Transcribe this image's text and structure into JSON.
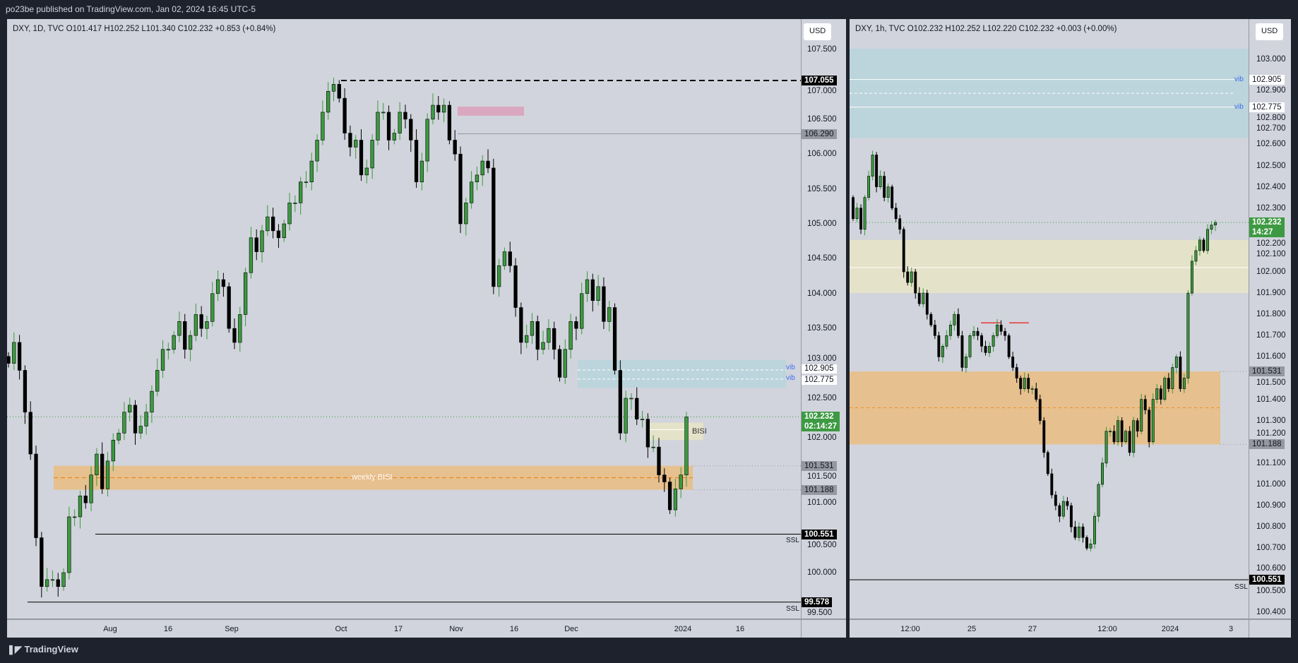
{
  "header": {
    "published": "po23be published on TradingView.com, Jan 02, 2024 16:45 UTC-5"
  },
  "footer": {
    "brand": "TradingView",
    "logo": "tradingview-logo"
  },
  "colors": {
    "up": "#3a9a3e",
    "down": "#000000",
    "vib": "#bcd4dc",
    "bisi": "#e4e2c8",
    "weekly_bisi": "#e6c08e",
    "pink": "#d9a7bf",
    "price_tag": "#3d9a42"
  },
  "left": {
    "legend": "DXY, 1D, TVC  O101.417  H102.252  L101.340  C102.232  +0.853 (+0.84%)",
    "currency": "USD",
    "ticks": [
      "107.500",
      "107.000",
      "106.500",
      "106.000",
      "105.500",
      "105.000",
      "104.500",
      "104.000",
      "103.500",
      "103.000",
      "102.500",
      "102.000",
      "101.500",
      "101.000",
      "100.500",
      "100.000",
      "99.500"
    ],
    "time_labels": [
      "Aug",
      "16",
      "Sep",
      "Oct",
      "17",
      "Nov",
      "16",
      "Dec",
      "2024",
      "16"
    ],
    "tags": {
      "high": "107.055",
      "level1": "106.290",
      "vib1": "102.905",
      "vib2": "102.775",
      "last": "102.232",
      "countdown": "02:14:27",
      "bisi_top": "101.531",
      "bisi_bottom": "101.188",
      "ssl1": "100.551",
      "ssl2": "99.578"
    },
    "annotations": {
      "vib": "vib",
      "bisi": "BISI",
      "weekly_bisi": "weekly BISI",
      "ssl": "SSL"
    },
    "closes": [
      103.0,
      103.3,
      102.9,
      102.3,
      101.7,
      100.5,
      99.8,
      99.9,
      99.9,
      99.8,
      100.0,
      100.8,
      100.8,
      101.1,
      101.0,
      101.4,
      101.7,
      101.2,
      101.6,
      101.9,
      102.0,
      102.3,
      102.4,
      102.0,
      102.1,
      102.3,
      102.6,
      102.9,
      103.2,
      103.2,
      103.4,
      103.6,
      103.2,
      103.4,
      103.7,
      103.5,
      103.6,
      104.0,
      104.2,
      104.1,
      103.5,
      103.3,
      103.7,
      104.3,
      104.8,
      104.6,
      104.9,
      105.1,
      104.9,
      104.8,
      105.0,
      105.3,
      105.3,
      105.6,
      105.6,
      105.9,
      106.2,
      106.6,
      106.9,
      107.0,
      106.8,
      106.3,
      106.1,
      106.2,
      105.7,
      105.8,
      106.2,
      106.6,
      106.6,
      106.2,
      106.3,
      106.6,
      106.5,
      106.2,
      105.6,
      105.9,
      106.5,
      106.7,
      106.6,
      106.7,
      106.2,
      106.0,
      105.0,
      105.3,
      105.6,
      105.7,
      105.9,
      105.8,
      104.1,
      104.4,
      104.6,
      104.4,
      103.8,
      103.3,
      103.4,
      103.6,
      103.2,
      103.3,
      103.5,
      103.2,
      102.8,
      103.2,
      103.6,
      103.5,
      104.0,
      104.2,
      103.9,
      104.1,
      103.6,
      103.8,
      102.9,
      102.0,
      102.5,
      102.5,
      102.2,
      102.2,
      101.8,
      101.8,
      101.4,
      101.3,
      100.9,
      101.2,
      101.4,
      102.232
    ]
  },
  "right": {
    "legend": "DXY, 1h, TVC  O102.232  H102.252  L102.220  C102.232  +0.003 (+0.00%)",
    "currency": "USD",
    "ticks": [
      "103.000",
      "102.900",
      "102.800",
      "102.700",
      "102.600",
      "102.500",
      "102.400",
      "102.300",
      "102.200",
      "102.100",
      "102.000",
      "101.900",
      "101.800",
      "101.700",
      "101.600",
      "101.500",
      "101.400",
      "101.300",
      "101.200",
      "101.100",
      "101.000",
      "100.900",
      "100.800",
      "100.700",
      "100.600",
      "100.500",
      "100.400"
    ],
    "time_labels": [
      "12:00",
      "25",
      "27",
      "12:00",
      "2024",
      "3"
    ],
    "tags": {
      "vib1": "102.905",
      "vib2": "102.775",
      "last": "102.232",
      "countdown": "14:27",
      "bisi_top": "101.531",
      "bisi_bottom": "101.188",
      "ssl": "100.551"
    },
    "annotations": {
      "vib": "vib",
      "ssl": "SSL"
    },
    "closes": [
      102.25,
      102.3,
      102.2,
      102.35,
      102.45,
      102.55,
      102.4,
      102.45,
      102.35,
      102.4,
      102.3,
      102.25,
      102.2,
      102.0,
      101.95,
      102.0,
      101.9,
      101.85,
      101.9,
      101.8,
      101.75,
      101.7,
      101.6,
      101.65,
      101.7,
      101.75,
      101.8,
      101.7,
      101.55,
      101.6,
      101.7,
      101.72,
      101.7,
      101.65,
      101.62,
      101.65,
      101.7,
      101.75,
      101.72,
      101.7,
      101.6,
      101.55,
      101.5,
      101.45,
      101.5,
      101.45,
      101.45,
      101.4,
      101.3,
      101.15,
      101.05,
      100.95,
      100.9,
      100.85,
      100.92,
      100.9,
      100.8,
      100.75,
      100.8,
      100.75,
      100.7,
      100.72,
      100.85,
      101.0,
      101.1,
      101.25,
      101.25,
      101.2,
      101.3,
      101.2,
      101.25,
      101.15,
      101.3,
      101.25,
      101.4,
      101.35,
      101.2,
      101.4,
      101.45,
      101.4,
      101.5,
      101.45,
      101.55,
      101.6,
      101.45,
      101.5,
      101.9,
      102.05,
      102.1,
      102.15,
      102.1,
      102.2,
      102.22,
      102.232
    ]
  }
}
